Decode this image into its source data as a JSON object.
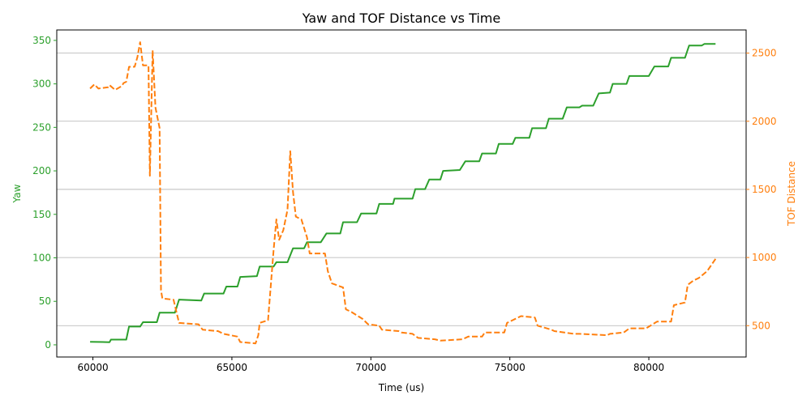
{
  "chart_data": {
    "type": "line",
    "title": "Yaw and TOF Distance vs Time",
    "xlabel": "Time (us)",
    "xlim": [
      58700,
      83500
    ],
    "xticks": [
      60000,
      65000,
      70000,
      75000,
      80000
    ],
    "grid": "horizontal gridlines from right axis",
    "y_left": {
      "label": "Yaw",
      "color": "#2ca02c",
      "lim": [
        -14,
        362
      ],
      "ticks": [
        0,
        50,
        100,
        150,
        200,
        250,
        300,
        350
      ]
    },
    "y_right": {
      "label": "TOF Distance",
      "color": "#ff7f0e",
      "lim": [
        270,
        2670
      ],
      "ticks": [
        500,
        1000,
        1500,
        2000,
        2500
      ]
    },
    "series": [
      {
        "name": "Yaw",
        "axis": "left",
        "color": "#2ca02c",
        "style": "solid",
        "points": [
          [
            59900,
            3.5
          ],
          [
            60600,
            3
          ],
          [
            60650,
            6
          ],
          [
            61200,
            6
          ],
          [
            61300,
            21
          ],
          [
            61700,
            21
          ],
          [
            61800,
            26
          ],
          [
            62300,
            26
          ],
          [
            62400,
            37
          ],
          [
            62950,
            37
          ],
          [
            63100,
            52
          ],
          [
            63900,
            51
          ],
          [
            64000,
            59
          ],
          [
            64700,
            59
          ],
          [
            64800,
            67
          ],
          [
            65200,
            67
          ],
          [
            65300,
            78
          ],
          [
            65900,
            79
          ],
          [
            66000,
            90
          ],
          [
            66500,
            90
          ],
          [
            66600,
            95
          ],
          [
            67000,
            95
          ],
          [
            67200,
            111
          ],
          [
            67600,
            111
          ],
          [
            67700,
            118
          ],
          [
            68200,
            118
          ],
          [
            68400,
            128
          ],
          [
            68900,
            128
          ],
          [
            69000,
            141
          ],
          [
            69500,
            141
          ],
          [
            69650,
            151
          ],
          [
            70200,
            151
          ],
          [
            70300,
            162
          ],
          [
            70800,
            162
          ],
          [
            70850,
            168
          ],
          [
            71500,
            168
          ],
          [
            71600,
            179
          ],
          [
            71950,
            179
          ],
          [
            72100,
            190
          ],
          [
            72500,
            190
          ],
          [
            72600,
            200
          ],
          [
            73200,
            201
          ],
          [
            73400,
            211
          ],
          [
            73900,
            211
          ],
          [
            74000,
            220
          ],
          [
            74500,
            220
          ],
          [
            74600,
            231
          ],
          [
            75100,
            231
          ],
          [
            75200,
            238
          ],
          [
            75700,
            238
          ],
          [
            75800,
            249
          ],
          [
            76300,
            249
          ],
          [
            76400,
            260
          ],
          [
            76900,
            260
          ],
          [
            77050,
            273
          ],
          [
            77500,
            273
          ],
          [
            77600,
            275
          ],
          [
            78000,
            275
          ],
          [
            78200,
            289
          ],
          [
            78600,
            290
          ],
          [
            78700,
            300
          ],
          [
            79200,
            300
          ],
          [
            79300,
            309
          ],
          [
            80000,
            309
          ],
          [
            80200,
            320
          ],
          [
            80700,
            320
          ],
          [
            80800,
            330
          ],
          [
            81300,
            330
          ],
          [
            81450,
            344
          ],
          [
            81900,
            344
          ],
          [
            82000,
            346
          ],
          [
            82400,
            346
          ]
        ]
      },
      {
        "name": "TOF Distance",
        "axis": "right",
        "color": "#ff7f0e",
        "style": "dashed",
        "points": [
          [
            59900,
            2240
          ],
          [
            60050,
            2270
          ],
          [
            60200,
            2240
          ],
          [
            60550,
            2250
          ],
          [
            60600,
            2265
          ],
          [
            60800,
            2230
          ],
          [
            61050,
            2260
          ],
          [
            61100,
            2280
          ],
          [
            61200,
            2290
          ],
          [
            61300,
            2400
          ],
          [
            61500,
            2400
          ],
          [
            61600,
            2470
          ],
          [
            61700,
            2580
          ],
          [
            61800,
            2410
          ],
          [
            62000,
            2410
          ],
          [
            62050,
            1600
          ],
          [
            62150,
            2520
          ],
          [
            62250,
            2100
          ],
          [
            62400,
            1950
          ],
          [
            62450,
            760
          ],
          [
            62500,
            700
          ],
          [
            62900,
            690
          ],
          [
            63100,
            520
          ],
          [
            63800,
            510
          ],
          [
            63950,
            470
          ],
          [
            64500,
            460
          ],
          [
            64700,
            440
          ],
          [
            65200,
            420
          ],
          [
            65300,
            380
          ],
          [
            65850,
            370
          ],
          [
            65950,
            430
          ],
          [
            66000,
            520
          ],
          [
            66300,
            540
          ],
          [
            66500,
            1050
          ],
          [
            66600,
            1280
          ],
          [
            66700,
            1130
          ],
          [
            66850,
            1200
          ],
          [
            67000,
            1350
          ],
          [
            67100,
            1780
          ],
          [
            67200,
            1480
          ],
          [
            67300,
            1300
          ],
          [
            67500,
            1280
          ],
          [
            67700,
            1150
          ],
          [
            67800,
            1030
          ],
          [
            68350,
            1030
          ],
          [
            68450,
            900
          ],
          [
            68600,
            810
          ],
          [
            69000,
            780
          ],
          [
            69100,
            620
          ],
          [
            69300,
            600
          ],
          [
            69700,
            550
          ],
          [
            69900,
            510
          ],
          [
            70300,
            500
          ],
          [
            70400,
            470
          ],
          [
            71000,
            460
          ],
          [
            71100,
            450
          ],
          [
            71500,
            440
          ],
          [
            71700,
            410
          ],
          [
            72300,
            400
          ],
          [
            72500,
            390
          ],
          [
            73300,
            400
          ],
          [
            73500,
            420
          ],
          [
            74000,
            420
          ],
          [
            74100,
            450
          ],
          [
            74800,
            450
          ],
          [
            74900,
            520
          ],
          [
            75300,
            560
          ],
          [
            75400,
            570
          ],
          [
            75900,
            560
          ],
          [
            76000,
            500
          ],
          [
            76500,
            470
          ],
          [
            76600,
            460
          ],
          [
            77300,
            440
          ],
          [
            77500,
            440
          ],
          [
            78500,
            430
          ],
          [
            78600,
            440
          ],
          [
            79100,
            450
          ],
          [
            79300,
            480
          ],
          [
            79900,
            480
          ],
          [
            80300,
            530
          ],
          [
            80800,
            530
          ],
          [
            80900,
            650
          ],
          [
            81300,
            670
          ],
          [
            81400,
            800
          ],
          [
            81600,
            830
          ],
          [
            81800,
            850
          ],
          [
            82100,
            900
          ],
          [
            82400,
            990
          ]
        ]
      }
    ]
  }
}
